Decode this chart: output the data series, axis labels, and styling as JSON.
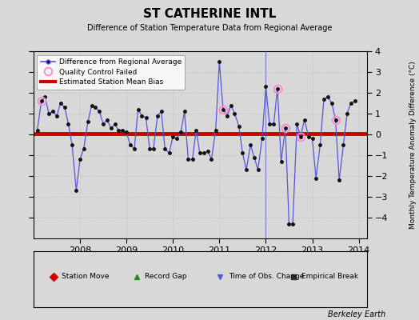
{
  "title": "ST CATHERINE INTL",
  "subtitle": "Difference of Station Temperature Data from Regional Average",
  "ylabel": "Monthly Temperature Anomaly Difference (°C)",
  "credit": "Berkeley Earth",
  "bias": 0.05,
  "ylim": [
    -5,
    4
  ],
  "xlim": [
    2007.0,
    2014.17
  ],
  "background_color": "#d8d8d8",
  "plot_bg_color": "#d8d8d8",
  "line_color": "#5555dd",
  "marker_color": "#111111",
  "bias_color": "#cc0000",
  "qc_color": "#ff88cc",
  "x_ticks": [
    2008,
    2009,
    2010,
    2011,
    2012,
    2013,
    2014
  ],
  "y_ticks": [
    -4,
    -3,
    -2,
    -1,
    0,
    1,
    2,
    3,
    4
  ],
  "times": [
    2007.08,
    2007.25,
    2007.42,
    2007.58,
    2007.75,
    2007.92,
    2008.08,
    2008.25,
    2008.42,
    2008.58,
    2008.75,
    2008.92,
    2009.08,
    2009.25,
    2009.42,
    2009.58,
    2009.75,
    2009.92,
    2010.08,
    2010.25,
    2010.42,
    2010.58,
    2010.75,
    2010.92,
    2011.08,
    2011.25,
    2011.42,
    2011.58,
    2011.75,
    2011.92,
    2012.08,
    2012.25,
    2012.42,
    2012.58,
    2012.75,
    2012.92,
    2013.08,
    2013.25,
    2013.42,
    2013.58,
    2013.75,
    2013.92
  ],
  "values": [
    0.2,
    1.8,
    1.1,
    1.5,
    0.5,
    -2.7,
    -1.2,
    1.4,
    1.1,
    0.7,
    0.5,
    0.2,
    0.1,
    1.2,
    0.8,
    -0.7,
    1.1,
    -0.9,
    -0.1,
    1.1,
    -1.2,
    -0.9,
    -0.9,
    0.2,
    3.5,
    1.4,
    0.4,
    -1.7,
    -1.1,
    -0.2,
    0.5,
    2.2,
    0.3,
    -1.3,
    -4.3,
    0.5,
    -0.1,
    1.8,
    -0.3,
    -2.2,
    1.0,
    1.6
  ],
  "times_full": [
    2007.08,
    2007.17,
    2007.25,
    2007.33,
    2007.42,
    2007.5,
    2007.58,
    2007.67,
    2007.75,
    2007.83,
    2007.92,
    2008.0,
    2008.08,
    2008.17,
    2008.25,
    2008.33,
    2008.42,
    2008.5,
    2008.58,
    2008.67,
    2008.75,
    2008.83,
    2008.92,
    2009.0,
    2009.08,
    2009.17,
    2009.25,
    2009.33,
    2009.42,
    2009.5,
    2009.58,
    2009.67,
    2009.75,
    2009.83,
    2009.92,
    2010.0,
    2010.08,
    2010.17,
    2010.25,
    2010.33,
    2010.42,
    2010.5,
    2010.58,
    2010.67,
    2010.75,
    2010.83,
    2010.92,
    2011.0,
    2011.08,
    2011.17,
    2011.25,
    2011.33,
    2011.42,
    2011.5,
    2011.58,
    2011.67,
    2011.75,
    2011.83,
    2011.92,
    2012.0,
    2012.08,
    2012.17,
    2012.25,
    2012.33,
    2012.42,
    2012.5,
    2012.58,
    2012.67,
    2012.75,
    2012.83,
    2012.92,
    2013.0,
    2013.08,
    2013.17,
    2013.25,
    2013.33,
    2013.42,
    2013.5,
    2013.58,
    2013.67,
    2013.75,
    2013.83,
    2013.92
  ],
  "values_full": [
    0.2,
    1.6,
    1.8,
    1.0,
    1.1,
    0.9,
    1.5,
    1.3,
    0.5,
    -0.5,
    -2.7,
    -1.2,
    -0.7,
    0.6,
    1.4,
    1.3,
    1.1,
    0.5,
    0.7,
    0.3,
    0.5,
    0.2,
    0.2,
    0.1,
    -0.5,
    -0.7,
    1.2,
    0.9,
    0.8,
    -0.7,
    -0.7,
    0.9,
    1.1,
    -0.7,
    -0.9,
    -0.1,
    -0.2,
    0.1,
    1.1,
    -1.2,
    -1.2,
    0.2,
    -0.9,
    -0.9,
    -0.8,
    -1.2,
    0.2,
    3.5,
    1.2,
    0.9,
    1.4,
    1.0,
    0.4,
    -0.9,
    -1.7,
    -0.5,
    -1.1,
    -1.7,
    -0.2,
    2.3,
    0.5,
    0.5,
    2.2,
    -1.3,
    0.3,
    -4.3,
    -4.3,
    0.5,
    -0.1,
    0.7,
    -0.1,
    -0.2,
    -2.1,
    -0.5,
    1.7,
    1.8,
    1.5,
    0.7,
    -2.2,
    -0.5,
    1.0,
    1.5,
    1.6
  ],
  "qc_failed_indices": [
    1,
    48,
    62,
    64,
    68,
    77
  ],
  "obs_change_time": 2012.0,
  "bottom_legend": [
    {
      "label": "Station Move",
      "color": "#cc0000",
      "marker": "D"
    },
    {
      "label": "Record Gap",
      "color": "#228822",
      "marker": "^"
    },
    {
      "label": "Time of Obs. Change",
      "color": "#5555dd",
      "marker": "v"
    },
    {
      "label": "Empirical Break",
      "color": "#333333",
      "marker": "s"
    }
  ]
}
